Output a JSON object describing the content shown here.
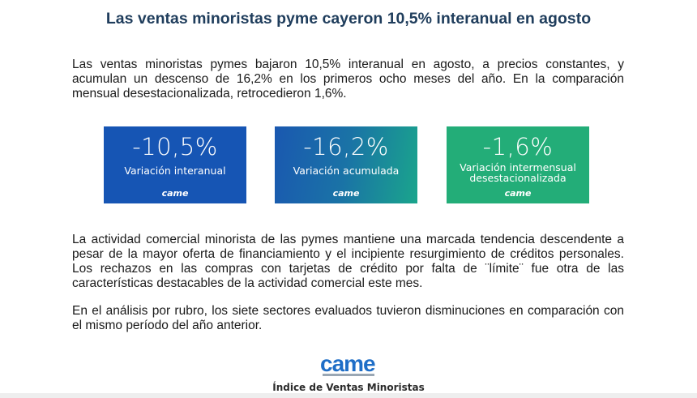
{
  "title": "Las ventas minoristas pyme cayeron 10,5% interanual en agosto",
  "paragraphs": {
    "intro": "Las ventas minoristas pymes bajaron 10,5% interanual en agosto, a precios constantes, y acumulan un descenso de 16,2% en los primeros ocho meses del año. En la comparación mensual desestacionalizada, retrocedieron 1,6%.",
    "activity": "La actividad comercial minorista de las pymes mantiene una marcada tendencia descendente a pesar de la mayor oferta de financiamiento y el incipiente resurgimiento de créditos personales. Los rechazos en las compras con tarjetas de crédito por falta de ¨límite¨ fue otra de las características destacables de la actividad comercial este mes.",
    "sectors": "En el análisis por rubro, los siete sectores evaluados tuvieron disminuciones en comparación con el mismo período del año anterior."
  },
  "cards": [
    {
      "value": "-10,5%",
      "label": "Variación interanual",
      "logo": "came",
      "color": "#1655b4"
    },
    {
      "value": "-16,2%",
      "label": "Variación acumulada",
      "logo": "came",
      "color": "#1a73a6"
    },
    {
      "value": "-1,6%",
      "label": "Variación intermensual desestacionalizada",
      "logo": "came",
      "color": "#23ad78"
    }
  ],
  "footer": {
    "logo_text": "came",
    "caption": "Índice de Ventas Minoristas"
  }
}
